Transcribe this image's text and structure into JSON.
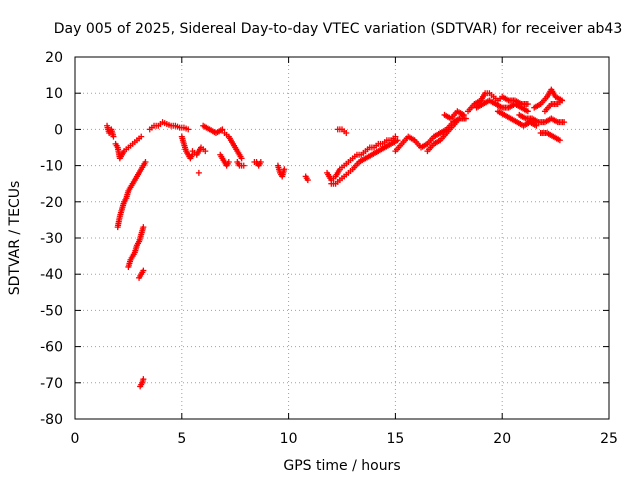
{
  "chart_data": {
    "type": "scatter",
    "title": "Day 005 of 2025, Sidereal Day-to-day VTEC variation (SDTVAR) for receiver ab43",
    "xlabel": "GPS time / hours",
    "ylabel": "SDTVAR / TECUs",
    "xlim": [
      0,
      25
    ],
    "ylim": [
      -80,
      20
    ],
    "xticks": [
      0,
      5,
      10,
      15,
      20,
      25
    ],
    "yticks": [
      -80,
      -70,
      -60,
      -50,
      -40,
      -30,
      -20,
      -10,
      0,
      10,
      20
    ],
    "grid": true,
    "marker": "plus",
    "series": [
      {
        "name": "SDTVAR",
        "color": "#ff0000",
        "segments": [
          {
            "x": [
              1.5,
              1.6,
              1.7,
              1.8
            ],
            "y": [
              1,
              -1,
              0,
              -2
            ]
          },
          {
            "x": [
              1.9,
              2.0,
              2.1,
              2.2,
              2.3,
              2.5,
              2.7,
              2.9,
              3.1
            ],
            "y": [
              -4,
              -5,
              -8,
              -7,
              -6,
              -5,
              -4,
              -3,
              -2
            ]
          },
          {
            "x": [
              2.0,
              2.1,
              2.2,
              2.3,
              2.4,
              2.5,
              2.6,
              2.7,
              2.8,
              2.9,
              3.0,
              3.1,
              3.2,
              3.3
            ],
            "y": [
              -27,
              -24,
              -22,
              -20,
              -19,
              -17,
              -16,
              -15,
              -14,
              -13,
              -12,
              -11,
              -10,
              -9
            ]
          },
          {
            "x": [
              2.5,
              2.6,
              2.7,
              2.8,
              2.9,
              3.0,
              3.1,
              3.2
            ],
            "y": [
              -38,
              -36,
              -35,
              -34,
              -32,
              -31,
              -29,
              -27
            ]
          },
          {
            "x": [
              3.0,
              3.1,
              3.2
            ],
            "y": [
              -41,
              -40,
              -39
            ]
          },
          {
            "x": [
              3.05,
              3.15,
              3.2
            ],
            "y": [
              -71,
              -70,
              -69
            ]
          },
          {
            "x": [
              3.5,
              3.7,
              3.9,
              4.1,
              4.3,
              4.5,
              4.7,
              4.9,
              5.1,
              5.3
            ],
            "y": [
              0,
              1,
              1,
              2,
              1.5,
              1,
              1,
              0.5,
              0.5,
              0
            ]
          },
          {
            "x": [
              5.0,
              5.1,
              5.2,
              5.3,
              5.4,
              5.5
            ],
            "y": [
              -2,
              -4,
              -6,
              -7,
              -8,
              -7
            ]
          },
          {
            "x": [
              5.5,
              5.7,
              5.9,
              6.1
            ],
            "y": [
              -6,
              -7,
              -5,
              -6
            ]
          },
          {
            "x": [
              5.8
            ],
            "y": [
              -12
            ]
          },
          {
            "x": [
              6.0,
              6.3,
              6.6,
              6.9
            ],
            "y": [
              1,
              0,
              -1,
              0
            ]
          },
          {
            "x": [
              6.8,
              6.9,
              7.0,
              7.1,
              7.2
            ],
            "y": [
              -7,
              -8,
              -9,
              -10,
              -9
            ]
          },
          {
            "x": [
              7.0,
              7.2,
              7.4,
              7.6,
              7.8
            ],
            "y": [
              -1,
              -2,
              -4,
              -6,
              -8
            ]
          },
          {
            "x": [
              7.6,
              7.7,
              7.8,
              7.9
            ],
            "y": [
              -9,
              -10,
              -10,
              -10
            ]
          },
          {
            "x": [
              8.4,
              8.5,
              8.6,
              8.7
            ],
            "y": [
              -9,
              -9,
              -10,
              -9
            ]
          },
          {
            "x": [
              9.5,
              9.6,
              9.7,
              9.8
            ],
            "y": [
              -10,
              -12,
              -13,
              -11
            ]
          },
          {
            "x": [
              10.8,
              10.9
            ],
            "y": [
              -13,
              -14
            ]
          },
          {
            "x": [
              11.8,
              12.0,
              12.2,
              12.4,
              12.6,
              12.8,
              13.0,
              13.2,
              13.4,
              13.6,
              13.8,
              14.0,
              14.2,
              14.4,
              14.6,
              14.8,
              15.0
            ],
            "y": [
              -12,
              -14,
              -13,
              -11,
              -10,
              -9,
              -8,
              -7,
              -7,
              -6,
              -5,
              -5,
              -4,
              -4,
              -3,
              -3,
              -2
            ]
          },
          {
            "x": [
              12.0,
              12.2,
              12.4,
              12.6,
              12.8,
              13.0,
              13.3,
              13.6,
              13.9,
              14.2,
              14.5,
              14.8,
              15.1
            ],
            "y": [
              -15,
              -15,
              -14,
              -13,
              -12,
              -11,
              -9,
              -8,
              -7,
              -6,
              -5,
              -4,
              -3
            ]
          },
          {
            "x": [
              12.3,
              12.5,
              12.7
            ],
            "y": [
              0,
              0,
              -1
            ]
          },
          {
            "x": [
              15.0,
              15.3,
              15.6,
              15.9,
              16.2,
              16.5,
              16.8,
              17.1,
              17.4,
              17.7,
              18.0,
              18.3
            ],
            "y": [
              -6,
              -4,
              -2,
              -3,
              -5,
              -4,
              -2,
              -1,
              0,
              2,
              3,
              3
            ]
          },
          {
            "x": [
              16.5,
              16.8,
              17.1,
              17.4,
              17.7,
              18.0
            ],
            "y": [
              -6,
              -4,
              -3,
              -1,
              1,
              3
            ]
          },
          {
            "x": [
              17.3,
              17.6,
              17.9,
              18.2
            ],
            "y": [
              4,
              3,
              5,
              4
            ]
          },
          {
            "x": [
              18.4,
              18.7,
              19.0,
              19.2,
              19.4,
              19.6,
              19.8,
              20.0,
              20.3,
              20.6,
              20.9,
              21.2
            ],
            "y": [
              5,
              7,
              8,
              10,
              10,
              9,
              8,
              9,
              8,
              8,
              7,
              7
            ]
          },
          {
            "x": [
              18.8,
              19.1,
              19.4,
              19.7,
              20.0,
              20.3,
              20.6,
              20.9,
              21.2
            ],
            "y": [
              6,
              7,
              8,
              7,
              6,
              6,
              7,
              6,
              5
            ]
          },
          {
            "x": [
              19.8,
              20.1,
              20.4,
              20.7,
              21.0,
              21.3,
              21.6
            ],
            "y": [
              5,
              4,
              3,
              2,
              1,
              2,
              1
            ]
          },
          {
            "x": [
              20.8,
              21.1,
              21.4,
              21.7,
              22.0,
              22.3,
              22.6,
              22.9
            ],
            "y": [
              4,
              3,
              3,
              2,
              2,
              3,
              2,
              2
            ]
          },
          {
            "x": [
              21.5,
              21.8,
              22.1,
              22.3,
              22.5,
              22.8
            ],
            "y": [
              6,
              7,
              9,
              11,
              9,
              8
            ]
          },
          {
            "x": [
              22.0,
              22.3,
              22.6,
              22.8
            ],
            "y": [
              5,
              7,
              7,
              8
            ]
          },
          {
            "x": [
              21.8,
              22.1,
              22.4,
              22.7
            ],
            "y": [
              -1,
              -1,
              -2,
              -3
            ]
          }
        ]
      }
    ]
  }
}
